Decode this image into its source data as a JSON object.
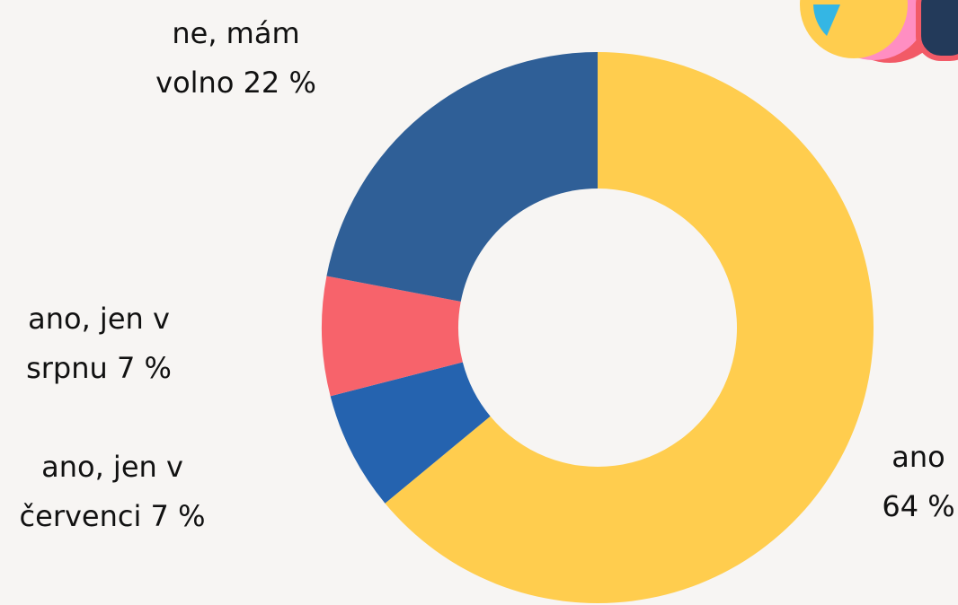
{
  "chart_data": {
    "type": "donut",
    "categories": [
      "ano",
      "ano, jen v červenci",
      "ano, jen v srpnu",
      "ne, mám volno"
    ],
    "values": [
      64,
      7,
      7,
      22
    ],
    "value_labels": [
      "64 %",
      "7 %",
      "7 %",
      "22 %"
    ],
    "colors": [
      "#FFCD4E",
      "#2563AF",
      "#F7636B",
      "#2F5F97"
    ]
  }
}
